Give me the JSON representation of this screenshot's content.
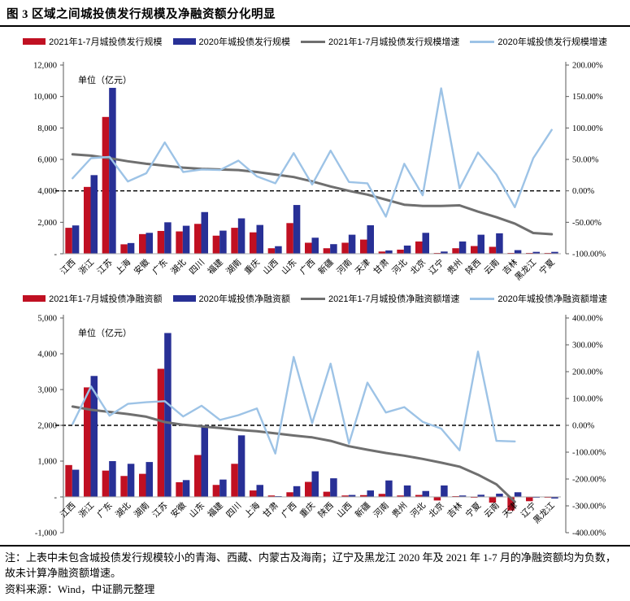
{
  "title": "图 3 区域之间城投债发行规模及净融资额分化明显",
  "footnote": {
    "note": "注：上表中未包含城投债发行规模较小的青海、西藏、内蒙古及海南；辽宁及黑龙江 2020 年及 2021 年 1-7 月的净融资额均为负数，故未计算净融资额增速。",
    "source": "资料来源：Wind，中证鹏元整理"
  },
  "colors": {
    "bar_2021": "#C01022",
    "bar_2020": "#283096",
    "growth_2021": "#6F6F6F",
    "growth_2020": "#9DC3E6",
    "axis_line": "#595959",
    "baseline": "#ABABAB",
    "zero_dash": "#000000"
  },
  "chart_data": [
    {
      "type": "bar",
      "subtype": "bar+line-combo",
      "unit_label": "单位（亿元）",
      "legend_position": "top-center",
      "categories": [
        "江西",
        "浙江",
        "江苏",
        "上海",
        "安徽",
        "广东",
        "湖北",
        "四川",
        "福建",
        "湖南",
        "重庆",
        "山西",
        "山东",
        "广西",
        "新疆",
        "河南",
        "天津",
        "甘肃",
        "河北",
        "北京",
        "辽宁",
        "贵州",
        "陕西",
        "云南",
        "吉林",
        "黑龙江",
        "宁夏"
      ],
      "series": [
        {
          "name": "2021年1-7月城投债发行规模",
          "kind": "bar",
          "axis": "left",
          "color": "#C01022",
          "values": [
            1650,
            4250,
            8700,
            600,
            1250,
            1450,
            1420,
            1900,
            1150,
            1650,
            1360,
            350,
            1950,
            700,
            350,
            700,
            900,
            140,
            260,
            780,
            50,
            350,
            490,
            440,
            50,
            20,
            30
          ]
        },
        {
          "name": "2020年城投债发行规模",
          "kind": "bar",
          "axis": "left",
          "color": "#283096",
          "values": [
            1800,
            5000,
            10550,
            680,
            1330,
            2000,
            1780,
            2650,
            1470,
            2250,
            1830,
            480,
            3100,
            1020,
            610,
            1210,
            1810,
            210,
            520,
            1330,
            140,
            780,
            1210,
            1300,
            230,
            120,
            120
          ]
        },
        {
          "name": "2021年1-7月城投债发行规模增速",
          "kind": "line",
          "axis": "right",
          "color": "#6F6F6F",
          "values": [
            58,
            56,
            52,
            47,
            43,
            40,
            37,
            35,
            34,
            33,
            30,
            26,
            22,
            15,
            7,
            0,
            -6,
            -14,
            -22,
            -24,
            -24,
            -23,
            -33,
            -42,
            -52,
            -67,
            -69
          ]
        },
        {
          "name": "2020年城投债发行规模增速",
          "kind": "line",
          "axis": "right",
          "color": "#9DC3E6",
          "values": [
            20,
            52,
            54,
            15,
            28,
            77,
            30,
            34,
            33,
            48,
            23,
            12,
            60,
            10,
            64,
            14,
            12,
            -41,
            43,
            -7,
            163,
            4,
            61,
            26,
            -26,
            52,
            97
          ]
        }
      ],
      "left_axis": {
        "range": [
          0,
          12000
        ],
        "ticks": [
          {
            "label": "12,000",
            "value": 12000
          },
          {
            "label": "10,000",
            "value": 10000
          },
          {
            "label": "8,000",
            "value": 8000
          },
          {
            "label": "6,000",
            "value": 6000
          },
          {
            "label": "4,000",
            "value": 4000
          },
          {
            "label": "2,000",
            "value": 2000
          },
          {
            "label": "-",
            "value": 0
          }
        ]
      },
      "right_axis": {
        "range": [
          -100,
          200
        ],
        "ticks": [
          {
            "label": "200.00%",
            "value": 200
          },
          {
            "label": "150.00%",
            "value": 150
          },
          {
            "label": "100.00%",
            "value": 100
          },
          {
            "label": "50.00%",
            "value": 50
          },
          {
            "label": "0.00%",
            "value": 0
          },
          {
            "label": "-50.00%",
            "value": -50
          },
          {
            "label": "-100.00%",
            "value": -100
          }
        ]
      },
      "zero_dashed_line_right_value": 0
    },
    {
      "type": "bar",
      "subtype": "bar+line-combo",
      "unit_label": "单位（亿元）",
      "legend_position": "top-center",
      "categories": [
        "江西",
        "浙江",
        "广东",
        "湖北",
        "湖南",
        "江苏",
        "安徽",
        "山东",
        "福建",
        "四川",
        "上海",
        "甘肃",
        "广西",
        "重庆",
        "陕西",
        "山西",
        "新疆",
        "河南",
        "贵州",
        "河北",
        "北京",
        "吉林",
        "宁夏",
        "云南",
        "天津",
        "辽宁",
        "黑龙江"
      ],
      "series": [
        {
          "name": "2021年1-7月城投债净融资额",
          "kind": "bar",
          "axis": "left",
          "color": "#C01022",
          "values": [
            890,
            3060,
            735,
            585,
            645,
            3580,
            410,
            1170,
            335,
            925,
            180,
            40,
            130,
            420,
            145,
            40,
            50,
            85,
            40,
            55,
            -100,
            10,
            -20,
            -160,
            -380,
            -120,
            -15
          ]
        },
        {
          "name": "2020年城投债净融资额",
          "kind": "bar",
          "axis": "left",
          "color": "#283096",
          "values": [
            760,
            3380,
            1000,
            925,
            975,
            4580,
            470,
            2000,
            485,
            1720,
            335,
            20,
            300,
            715,
            520,
            55,
            180,
            460,
            320,
            165,
            320,
            40,
            60,
            90,
            130,
            -10,
            -45
          ]
        },
        {
          "name": "2021年1-7月城投债净融资额增速",
          "kind": "line",
          "axis": "right",
          "color": "#6F6F6F",
          "values": [
            70,
            58,
            50,
            42,
            32,
            12,
            2,
            -4,
            -10,
            -17,
            -22,
            -30,
            -38,
            -45,
            -58,
            -78,
            -91,
            -103,
            -113,
            -125,
            -139,
            -154,
            -184,
            -220,
            -285,
            null,
            null
          ]
        },
        {
          "name": "2020年城投债净融资额增速",
          "kind": "line",
          "axis": "right",
          "color": "#9DC3E6",
          "values": [
            5,
            145,
            36,
            80,
            86,
            90,
            33,
            73,
            20,
            38,
            63,
            -105,
            255,
            8,
            230,
            -68,
            159,
            48,
            68,
            13,
            -12,
            -93,
            275,
            -58,
            -60,
            null,
            null
          ]
        }
      ],
      "left_axis": {
        "range": [
          -1000,
          5000
        ],
        "ticks": [
          {
            "label": "5,000",
            "value": 5000
          },
          {
            "label": "4,000",
            "value": 4000
          },
          {
            "label": "3,000",
            "value": 3000
          },
          {
            "label": "2,000",
            "value": 2000
          },
          {
            "label": "1,000",
            "value": 1000
          },
          {
            "label": "-",
            "value": 0
          },
          {
            "label": "-1,000",
            "value": -1000
          }
        ]
      },
      "right_axis": {
        "range": [
          -400,
          400
        ],
        "ticks": [
          {
            "label": "400.00%",
            "value": 400
          },
          {
            "label": "300.00%",
            "value": 300
          },
          {
            "label": "200.00%",
            "value": 200
          },
          {
            "label": "100.00%",
            "value": 100
          },
          {
            "label": "0.00%",
            "value": 0
          },
          {
            "label": "-100.00%",
            "value": -100
          },
          {
            "label": "-200.00%",
            "value": -200
          },
          {
            "label": "-300.00%",
            "value": -300
          },
          {
            "label": "-400.00%",
            "value": -400
          }
        ]
      },
      "zero_dashed_line_right_value": 0
    }
  ]
}
